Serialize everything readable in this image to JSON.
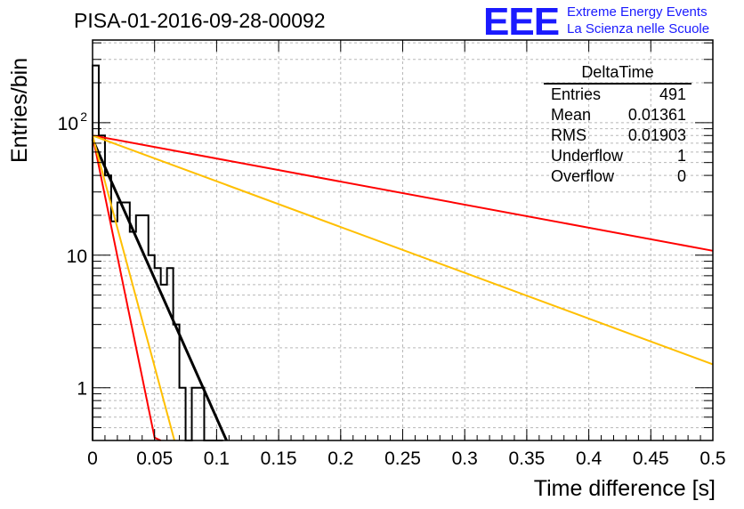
{
  "title": "PISA-01-2016-09-28-00092",
  "logo": {
    "mark": "EEE",
    "line1": "Extreme Energy Events",
    "line2": "La Scienza nelle Scuole",
    "color": "#1a1aff"
  },
  "stats_box": {
    "title": "DeltaTime",
    "rows": [
      {
        "label": "Entries",
        "value": "491"
      },
      {
        "label": "Mean",
        "value": "0.01361"
      },
      {
        "label": "RMS",
        "value": "0.01903"
      },
      {
        "label": "Underflow",
        "value": "1"
      },
      {
        "label": "Overflow",
        "value": "0"
      }
    ]
  },
  "chart_data": {
    "type": "line",
    "xlabel": "Time difference [s]",
    "ylabel": "Entries/bin",
    "xlim": [
      0,
      0.5
    ],
    "ylim": [
      0.4,
      420
    ],
    "yscale": "log",
    "grid": true,
    "x_ticks": [
      "0",
      "0.05",
      "0.1",
      "0.15",
      "0.2",
      "0.25",
      "0.3",
      "0.35",
      "0.4",
      "0.45",
      "0.5"
    ],
    "y_ticks": [
      {
        "value": 1,
        "label": "1"
      },
      {
        "value": 10,
        "label": "10"
      },
      {
        "value": 100,
        "label": "10",
        "sup": "2"
      }
    ],
    "histogram": {
      "bin_width": 0.005,
      "bin_start": 0,
      "values": [
        270,
        80,
        40,
        18,
        25,
        25,
        15,
        20,
        20,
        10,
        8,
        6,
        8,
        3,
        1,
        0,
        1,
        1,
        0,
        0,
        0
      ],
      "color": "#000000"
    },
    "fits": [
      {
        "color": "#000000",
        "points": [
          [
            0,
            75
          ],
          [
            0.108,
            0.4
          ]
        ]
      },
      {
        "color": "#ff0000",
        "points": [
          [
            0,
            80
          ],
          [
            0.5,
            10.8
          ]
        ]
      },
      {
        "color": "#ffbf00",
        "points": [
          [
            0,
            80
          ],
          [
            0.5,
            1.5
          ]
        ]
      },
      {
        "color": "#ff0000",
        "points": [
          [
            0,
            80
          ],
          [
            0.05,
            0.42
          ],
          [
            0.055,
            0.4
          ]
        ]
      },
      {
        "color": "#ffbf00",
        "points": [
          [
            0,
            80
          ],
          [
            0.066,
            0.4
          ]
        ]
      }
    ]
  }
}
